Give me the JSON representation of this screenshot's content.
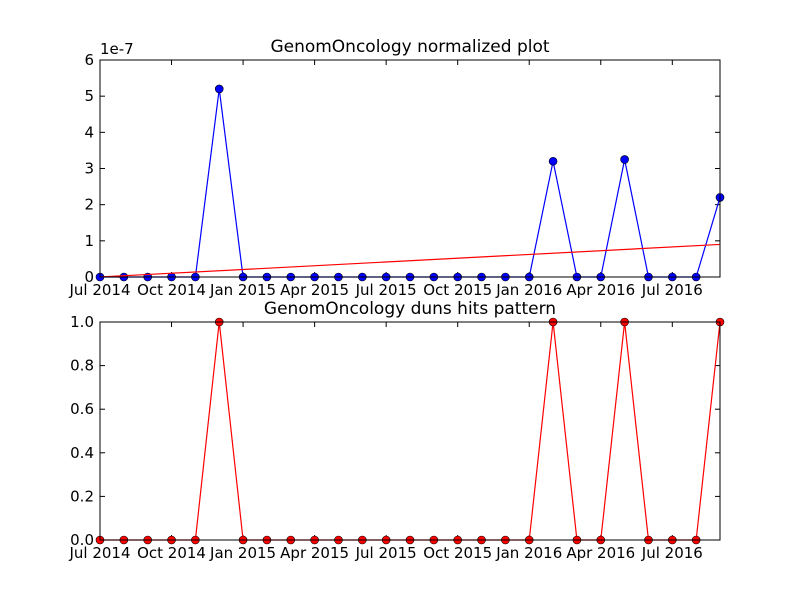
{
  "chart_data": [
    {
      "type": "line",
      "title": "GenomOncology normalized plot",
      "offset_label": "1e-7",
      "x": [
        "2014-07",
        "2014-08",
        "2014-09",
        "2014-10",
        "2014-11",
        "2014-12",
        "2015-01",
        "2015-02",
        "2015-03",
        "2015-04",
        "2015-05",
        "2015-06",
        "2015-07",
        "2015-08",
        "2015-09",
        "2015-10",
        "2015-11",
        "2015-12",
        "2016-01",
        "2016-02",
        "2016-03",
        "2016-04",
        "2016-05",
        "2016-06",
        "2016-07",
        "2016-08",
        "2016-09"
      ],
      "series": [
        {
          "color": "#0000ff",
          "marker": true,
          "values": [
            0,
            0,
            0,
            0,
            0,
            5.2,
            0,
            0,
            0,
            0,
            0,
            0,
            0,
            0,
            0,
            0,
            0,
            0,
            0,
            3.2,
            0,
            0,
            3.25,
            0,
            0,
            0,
            2.2
          ]
        },
        {
          "color": "#ff0000",
          "marker": false,
          "x": [
            "2014-07",
            "2016-09"
          ],
          "values": [
            0,
            0.9
          ]
        }
      ],
      "xlim": [
        "2014-07",
        "2016-09"
      ],
      "xticks": [
        {
          "value": "2014-07",
          "label": "Jul 2014"
        },
        {
          "value": "2014-10",
          "label": "Oct 2014"
        },
        {
          "value": "2015-01",
          "label": "Jan 2015"
        },
        {
          "value": "2015-04",
          "label": "Apr 2015"
        },
        {
          "value": "2015-07",
          "label": "Jul 2015"
        },
        {
          "value": "2015-10",
          "label": "Oct 2015"
        },
        {
          "value": "2016-01",
          "label": "Jan 2016"
        },
        {
          "value": "2016-04",
          "label": "Apr 2016"
        },
        {
          "value": "2016-07",
          "label": "Jul 2016"
        }
      ],
      "ylim": [
        0,
        6
      ],
      "yticks": [
        0,
        1,
        2,
        3,
        4,
        5,
        6
      ]
    },
    {
      "type": "line",
      "title": "GenomOncology duns hits pattern",
      "x": [
        "2014-07",
        "2014-08",
        "2014-09",
        "2014-10",
        "2014-11",
        "2014-12",
        "2015-01",
        "2015-02",
        "2015-03",
        "2015-04",
        "2015-05",
        "2015-06",
        "2015-07",
        "2015-08",
        "2015-09",
        "2015-10",
        "2015-11",
        "2015-12",
        "2016-01",
        "2016-02",
        "2016-03",
        "2016-04",
        "2016-05",
        "2016-06",
        "2016-07",
        "2016-08",
        "2016-09"
      ],
      "series": [
        {
          "color": "#ff0000",
          "marker": true,
          "values": [
            0,
            0,
            0,
            0,
            0,
            1,
            0,
            0,
            0,
            0,
            0,
            0,
            0,
            0,
            0,
            0,
            0,
            0,
            0,
            1,
            0,
            0,
            1,
            0,
            0,
            0,
            1
          ]
        }
      ],
      "xlim": [
        "2014-07",
        "2016-09"
      ],
      "xticks": [
        {
          "value": "2014-07",
          "label": "Jul 2014"
        },
        {
          "value": "2014-10",
          "label": "Oct 2014"
        },
        {
          "value": "2015-01",
          "label": "Jan 2015"
        },
        {
          "value": "2015-04",
          "label": "Apr 2015"
        },
        {
          "value": "2015-07",
          "label": "Jul 2015"
        },
        {
          "value": "2015-10",
          "label": "Oct 2015"
        },
        {
          "value": "2016-01",
          "label": "Jan 2016"
        },
        {
          "value": "2016-04",
          "label": "Apr 2016"
        },
        {
          "value": "2016-07",
          "label": "Jul 2016"
        }
      ],
      "ylim": [
        0,
        1
      ],
      "yticks": [
        {
          "value": 0,
          "label": "0.0"
        },
        {
          "value": 0.2,
          "label": "0.2"
        },
        {
          "value": 0.4,
          "label": "0.4"
        },
        {
          "value": 0.6,
          "label": "0.6"
        },
        {
          "value": 0.8,
          "label": "0.8"
        },
        {
          "value": 1,
          "label": "1.0"
        }
      ]
    }
  ]
}
